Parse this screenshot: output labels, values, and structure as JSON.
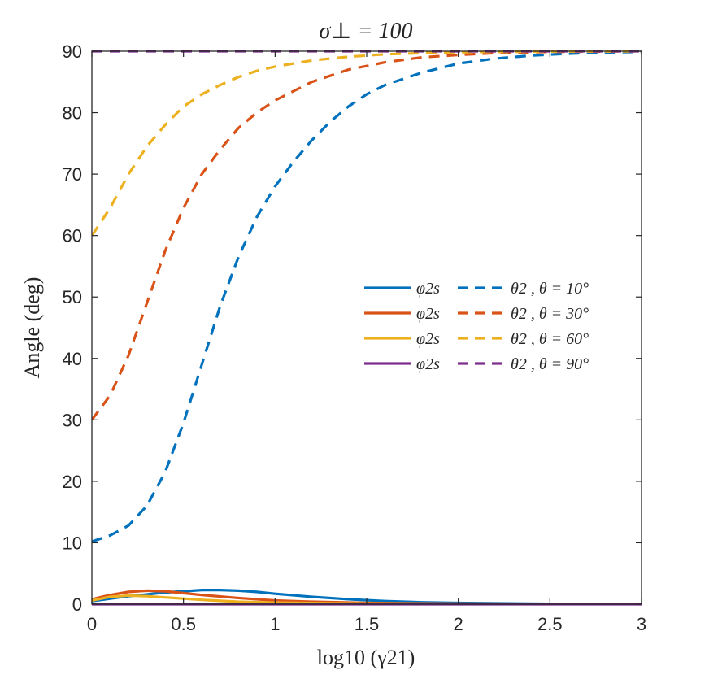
{
  "chart_data": {
    "type": "line",
    "title": "σ⊥ = 100",
    "xlabel": "log10 (γ21)",
    "ylabel": "Angle (deg)",
    "xlim": [
      0,
      3
    ],
    "ylim": [
      0,
      90
    ],
    "xticks": [
      0,
      0.5,
      1,
      1.5,
      2,
      2.5,
      3
    ],
    "xtick_labels": [
      "0",
      "0.5",
      "1",
      "1.5",
      "2",
      "2.5",
      "3"
    ],
    "yticks": [
      0,
      10,
      20,
      30,
      40,
      50,
      60,
      70,
      80,
      90
    ],
    "ytick_labels": [
      "0",
      "10",
      "20",
      "30",
      "40",
      "50",
      "60",
      "70",
      "80",
      "90"
    ],
    "grid": false,
    "legend_position": "center-right",
    "colors": {
      "theta10": "#0072BD",
      "theta30": "#D95319",
      "theta60": "#EDB120",
      "theta90": "#7E2F8E",
      "axis": "#262626"
    },
    "legend": [
      {
        "solid_label": "φ2s",
        "dashed_label": "θ2",
        "condition": "θ = 10°",
        "color_key": "theta10"
      },
      {
        "solid_label": "φ2s",
        "dashed_label": "θ2",
        "condition": "θ = 30°",
        "color_key": "theta30"
      },
      {
        "solid_label": "φ2s",
        "dashed_label": "θ2",
        "condition": "θ = 60°",
        "color_key": "theta60"
      },
      {
        "solid_label": "φ2s",
        "dashed_label": "θ2",
        "condition": "θ = 90°",
        "color_key": "theta90"
      }
    ],
    "series": [
      {
        "name": "φ2s, θ = 10°",
        "style": "solid",
        "color_key": "theta10",
        "x": [
          0,
          0.1,
          0.2,
          0.3,
          0.4,
          0.5,
          0.6,
          0.7,
          0.8,
          0.9,
          1.0,
          1.2,
          1.4,
          1.6,
          1.8,
          2.0,
          2.5,
          3.0
        ],
        "y": [
          0.5,
          0.9,
          1.3,
          1.6,
          1.9,
          2.1,
          2.3,
          2.3,
          2.2,
          2.0,
          1.7,
          1.2,
          0.8,
          0.5,
          0.3,
          0.2,
          0.05,
          0.02
        ]
      },
      {
        "name": "θ2, θ = 10°",
        "style": "dashed",
        "color_key": "theta10",
        "x": [
          0,
          0.1,
          0.2,
          0.3,
          0.4,
          0.5,
          0.6,
          0.7,
          0.8,
          0.9,
          1.0,
          1.1,
          1.2,
          1.3,
          1.4,
          1.5,
          1.6,
          1.8,
          2.0,
          2.2,
          2.4,
          2.6,
          2.8,
          3.0
        ],
        "y": [
          10.2,
          11.2,
          12.8,
          16.0,
          21.5,
          29.5,
          39.0,
          48.5,
          56.5,
          63.0,
          68.0,
          72.0,
          75.5,
          78.5,
          81.0,
          83.0,
          84.5,
          86.5,
          88.0,
          88.8,
          89.3,
          89.6,
          89.8,
          89.9
        ]
      },
      {
        "name": "φ2s, θ = 30°",
        "style": "solid",
        "color_key": "theta30",
        "x": [
          0,
          0.1,
          0.2,
          0.3,
          0.4,
          0.5,
          0.6,
          0.8,
          1.0,
          1.2,
          1.5,
          2.0,
          2.5,
          3.0
        ],
        "y": [
          0.8,
          1.5,
          2.0,
          2.2,
          2.1,
          1.8,
          1.5,
          1.0,
          0.6,
          0.4,
          0.2,
          0.08,
          0.03,
          0.01
        ]
      },
      {
        "name": "θ2, θ = 30°",
        "style": "dashed",
        "color_key": "theta30",
        "x": [
          0,
          0.1,
          0.2,
          0.3,
          0.4,
          0.5,
          0.6,
          0.7,
          0.8,
          0.9,
          1.0,
          1.2,
          1.4,
          1.6,
          1.8,
          2.0,
          2.2,
          2.5,
          3.0
        ],
        "y": [
          30.0,
          34.0,
          40.5,
          49.0,
          57.5,
          64.5,
          70.0,
          74.0,
          77.5,
          80.0,
          82.0,
          85.0,
          87.0,
          88.2,
          89.0,
          89.4,
          89.7,
          89.9,
          90.0
        ]
      },
      {
        "name": "φ2s, θ = 60°",
        "style": "solid",
        "color_key": "theta60",
        "x": [
          0,
          0.1,
          0.2,
          0.3,
          0.4,
          0.6,
          0.8,
          1.0,
          1.5,
          2.0,
          3.0
        ],
        "y": [
          0.6,
          1.2,
          1.4,
          1.3,
          1.1,
          0.7,
          0.4,
          0.25,
          0.1,
          0.03,
          0.01
        ]
      },
      {
        "name": "θ2, θ = 60°",
        "style": "dashed",
        "color_key": "theta60",
        "x": [
          0,
          0.1,
          0.2,
          0.3,
          0.4,
          0.5,
          0.6,
          0.7,
          0.8,
          0.9,
          1.0,
          1.2,
          1.4,
          1.6,
          1.8,
          2.0,
          2.5,
          3.0
        ],
        "y": [
          60.0,
          64.5,
          70.0,
          74.5,
          78.0,
          81.0,
          83.0,
          84.5,
          85.8,
          86.8,
          87.5,
          88.5,
          89.1,
          89.5,
          89.7,
          89.85,
          89.95,
          90.0
        ]
      },
      {
        "name": "φ2s, θ = 90°",
        "style": "solid",
        "color_key": "theta90",
        "x": [
          0,
          3.0
        ],
        "y": [
          0,
          0
        ]
      },
      {
        "name": "θ2, θ = 90°",
        "style": "dashed",
        "color_key": "theta90",
        "x": [
          0,
          3.0
        ],
        "y": [
          90,
          90
        ]
      }
    ]
  }
}
